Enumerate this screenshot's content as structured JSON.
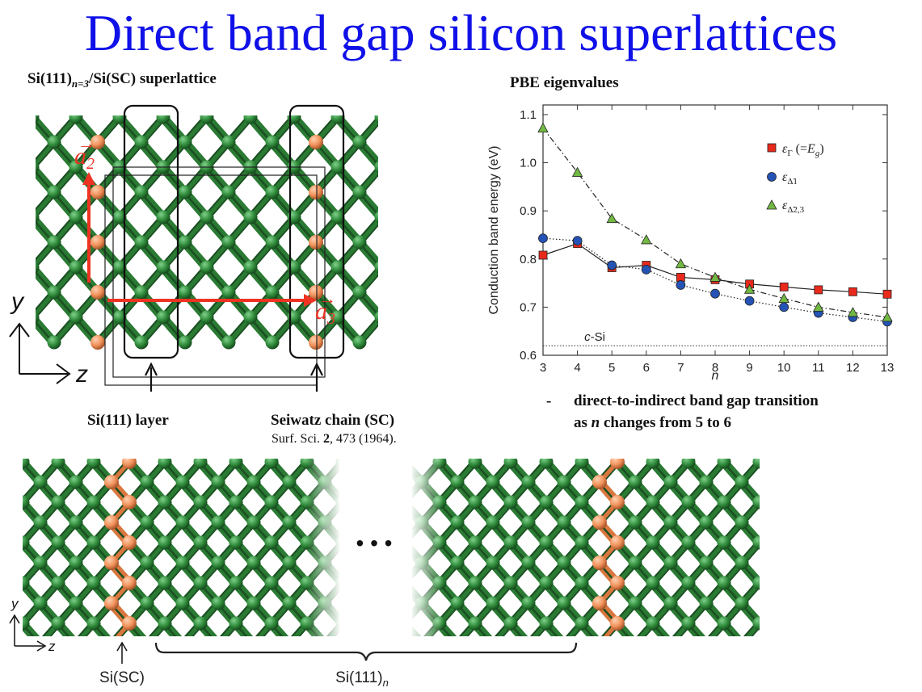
{
  "slide": {
    "title": "Direct band gap silicon superlattices",
    "subtitle_prefix": "Si(111)",
    "subtitle_sub": "n=3",
    "subtitle_suffix": "/Si(SC) superlattice",
    "chart_heading": "PBE eigenvalues",
    "layer_label": "Si(111) layer",
    "chain_label": "Seiwatz chain (SC)",
    "reference_journal": "Surf. Sci.",
    "reference_volume": "2",
    "reference_rest": ", 473 (1964).",
    "bullet_dash": "-",
    "bullet_line1": "direct-to-indirect band gap transition",
    "bullet_line2_a": "as ",
    "bullet_line2_n": "n",
    "bullet_line2_b": " changes from 5 to 6"
  },
  "structure_top": {
    "vec_a2": "a",
    "vec_a2_sub": "2",
    "vec_a3": "a",
    "vec_a3_sub": "3",
    "axis_y": "y",
    "axis_z": "z",
    "atom_si_color": "#2f8a3a",
    "atom_sc_color": "#f0915a",
    "arrow_color": "#ee3322"
  },
  "structure_bottom": {
    "ellipsis": "• • •",
    "axis_y": "y",
    "axis_z": "z",
    "label_sc": "Si(SC)",
    "label_n_prefix": "Si(111)",
    "label_n_sub": "n"
  },
  "chart_data": {
    "type": "line",
    "ylabel": "Conduction band energy (eV)",
    "xlabel": "n",
    "xlim": [
      3,
      13
    ],
    "ylim": [
      0.6,
      1.12
    ],
    "x": [
      3,
      4,
      5,
      6,
      7,
      8,
      9,
      10,
      11,
      12,
      13
    ],
    "xticks": [
      "3",
      "4",
      "5",
      "6",
      "7",
      "8",
      "9",
      "10",
      "11",
      "12",
      "13"
    ],
    "yticks": [
      "0.6",
      "0.7",
      "0.8",
      "0.9",
      "1.0",
      "1.1"
    ],
    "reference_line": {
      "label": "c-Si",
      "value": 0.62
    },
    "series": [
      {
        "name": "εΓ (=Eg)",
        "marker": "square",
        "color": "#e8291c",
        "line": "solid",
        "values": [
          0.808,
          0.832,
          0.782,
          0.787,
          0.762,
          0.757,
          0.748,
          0.742,
          0.736,
          0.732,
          0.727
        ]
      },
      {
        "name": "εΔ̃1",
        "marker": "circle",
        "color": "#2553b5",
        "line": "dotted",
        "values": [
          0.843,
          0.838,
          0.787,
          0.778,
          0.746,
          0.728,
          0.713,
          0.7,
          0.688,
          0.679,
          0.67
        ]
      },
      {
        "name": "εΔ̃2,3",
        "marker": "triangle",
        "color": "#72b943",
        "line": "dashdot",
        "values": [
          1.072,
          0.98,
          0.884,
          0.84,
          0.79,
          0.762,
          0.737,
          0.718,
          0.7,
          0.689,
          0.679
        ]
      }
    ]
  }
}
